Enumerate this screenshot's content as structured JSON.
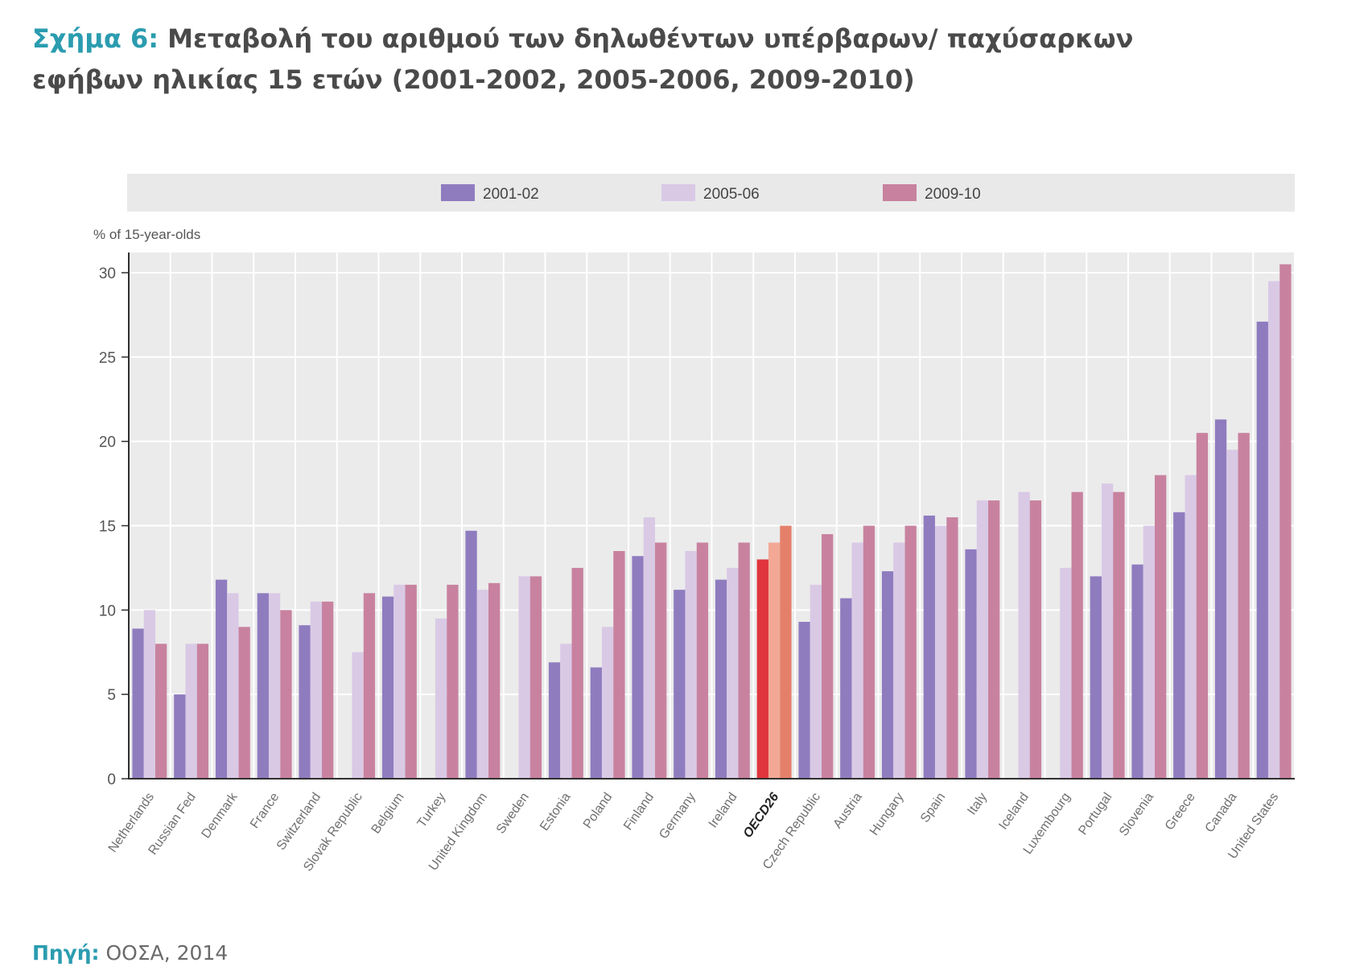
{
  "title": {
    "label": "Σχήμα 6:",
    "line1": "Μεταβολή του αριθμού των δηλωθέντων υπέρβαρων/ παχύσαρκων",
    "line2": "εφήβων ηλικίας 15 ετών (2001-2002, 2005-2006, 2009-2010)"
  },
  "source": {
    "label": "Πηγή:",
    "text": "ΟΟΣΑ, 2014"
  },
  "colors": {
    "accent": "#2b9caf",
    "title_text": "#4a4a4a"
  },
  "chart_data": {
    "type": "bar",
    "ylabel": "% of 15-year-olds",
    "xlabel": "",
    "ylim": [
      0,
      31.2
    ],
    "yticks": [
      0,
      5,
      10,
      15,
      20,
      25,
      30
    ],
    "grid": true,
    "legend_position": "top",
    "categories": [
      "Netherlands",
      "Russian Fed",
      "Denmark",
      "France",
      "Switzerland",
      "Slovak Republic",
      "Belgium",
      "Turkey",
      "United Kingdom",
      "Sweden",
      "Estonia",
      "Poland",
      "Finland",
      "Germany",
      "Ireland",
      "OECD26",
      "Czech Republic",
      "Austria",
      "Hungary",
      "Spain",
      "Italy",
      "Iceland",
      "Luxembourg",
      "Portugal",
      "Slovenia",
      "Greece",
      "Canada",
      "United States"
    ],
    "series": [
      {
        "name": "2001-02",
        "color": "#8f7cbf",
        "values": [
          8.9,
          5.0,
          11.8,
          11.0,
          9.1,
          null,
          10.8,
          null,
          14.7,
          null,
          6.9,
          6.6,
          13.2,
          11.2,
          11.8,
          13.0,
          9.3,
          10.7,
          12.3,
          15.6,
          13.6,
          null,
          null,
          12.0,
          12.7,
          15.8,
          21.3,
          27.1
        ]
      },
      {
        "name": "2005-06",
        "color": "#d9c9e5",
        "values": [
          10.0,
          8.0,
          11.0,
          11.0,
          10.5,
          7.5,
          11.5,
          9.5,
          11.2,
          12.0,
          8.0,
          9.0,
          15.5,
          13.5,
          12.5,
          14.0,
          11.5,
          14.0,
          14.0,
          15.0,
          16.5,
          17.0,
          12.5,
          17.5,
          15.0,
          18.0,
          19.5,
          29.5
        ]
      },
      {
        "name": "2009-10",
        "color": "#c8829f",
        "values": [
          8.0,
          8.0,
          9.0,
          10.0,
          10.5,
          11.0,
          11.5,
          11.5,
          11.6,
          12.0,
          12.5,
          13.5,
          14.0,
          14.0,
          14.0,
          15.0,
          14.5,
          15.0,
          15.0,
          15.5,
          16.5,
          16.5,
          17.0,
          17.0,
          18.0,
          20.5,
          20.5,
          30.5
        ]
      }
    ],
    "highlight": {
      "category": "OECD26",
      "colors": [
        "#e0353d",
        "#f3a895",
        "#e4806a"
      ]
    }
  }
}
